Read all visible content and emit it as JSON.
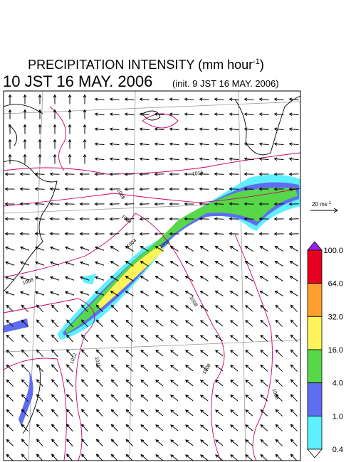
{
  "header": {
    "title": "PRECIPITATION INTENSITY (mm hour",
    "title_exponent": "-1",
    "title_close": ")",
    "valid_time": "10 JST 16 MAY. 2006",
    "init_time": "(init. 9 JST 16 MAY. 2006)"
  },
  "colorbar": {
    "labels": [
      "100.0",
      "64.0",
      "32.0",
      "16.0",
      "4.0",
      "1.0",
      "0.4"
    ],
    "colors": [
      "#e8001e",
      "#ff9f30",
      "#fff35a",
      "#56d84a",
      "#5f6ef0",
      "#5ff0ff"
    ],
    "over_color": "#a020f0",
    "under_color": "#ffffff"
  },
  "vector_scale": {
    "label": "20 ms",
    "exponent": "-1"
  },
  "contour_labels": [
    "1016",
    "1008",
    "1004",
    "1004",
    "1008",
    "1008",
    "1012",
    "1012",
    "1008",
    "1008",
    "1008"
  ]
}
